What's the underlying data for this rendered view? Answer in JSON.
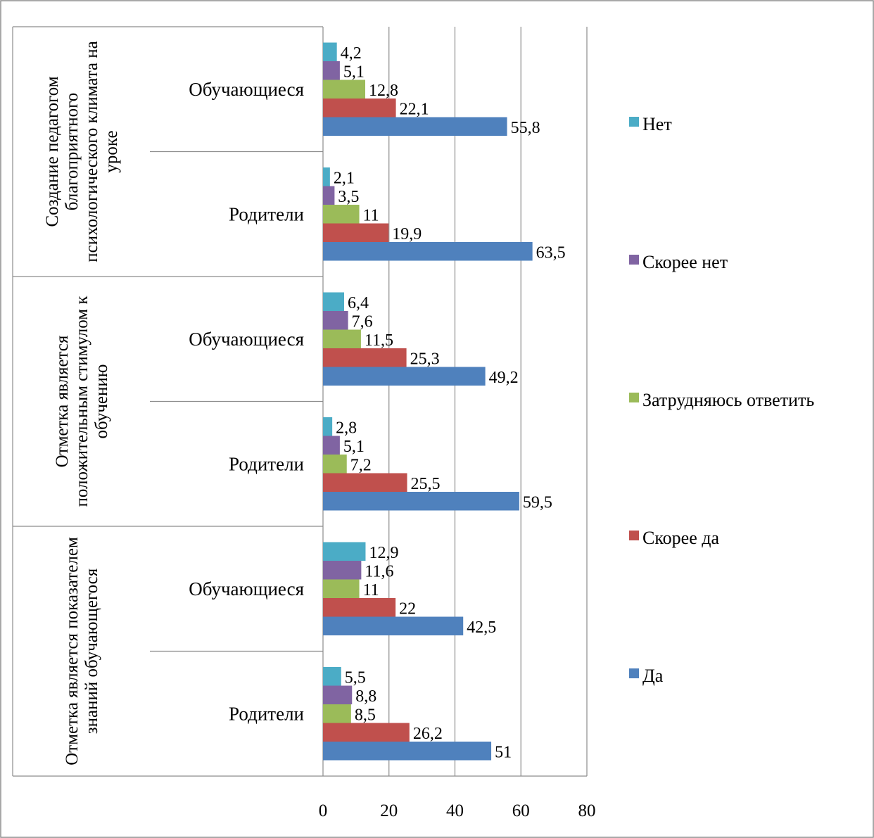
{
  "chart_data": {
    "type": "bar",
    "orientation": "horizontal",
    "title": "",
    "xlabel": "",
    "ylabel": "",
    "xlim": [
      0,
      80
    ],
    "x_ticks": [
      "0",
      "20",
      "40",
      "60",
      "80"
    ],
    "grid": "vertical",
    "legend_position": "right",
    "groups": [
      {
        "label": "Создание педагогом благоприятного психологического климата на уроке",
        "categories": [
          "Обучающиеся",
          "Родители"
        ]
      },
      {
        "label": "Отметка является положительным стимулом к обучению",
        "categories": [
          "Обучающиеся",
          "Родители"
        ]
      },
      {
        "label": "Отметка является показателем знаний обучающегося",
        "categories": [
          "Обучающиеся",
          "Родители"
        ]
      }
    ],
    "series": [
      {
        "name": "Да",
        "color": "#4F81BD",
        "values": [
          55.8,
          63.5,
          49.2,
          59.5,
          42.5,
          51
        ],
        "labels": [
          "55,8",
          "63,5",
          "49,2",
          "59,5",
          "42,5",
          "51"
        ]
      },
      {
        "name": "Скорее да",
        "color": "#C0504D",
        "values": [
          22.1,
          19.9,
          25.3,
          25.5,
          22,
          26.2
        ],
        "labels": [
          "22,1",
          "19,9",
          "25,3",
          "25,5",
          "22",
          "26,2"
        ]
      },
      {
        "name": "Затрудняюсь ответить",
        "color": "#9BBB59",
        "values": [
          12.8,
          11,
          11.5,
          7.2,
          11,
          8.5
        ],
        "labels": [
          "12,8",
          "11",
          "11,5",
          "7,2",
          "11",
          "8,5"
        ]
      },
      {
        "name": "Скорее нет",
        "color": "#8064A2",
        "values": [
          5.1,
          3.5,
          7.6,
          5.1,
          11.6,
          8.8
        ],
        "labels": [
          "5,1",
          "3,5",
          "7,6",
          "5,1",
          "11,6",
          "8,8"
        ]
      },
      {
        "name": "Нет",
        "color": "#4BACC6",
        "values": [
          4.2,
          2.1,
          6.4,
          2.8,
          12.9,
          5.5
        ],
        "labels": [
          "4,2",
          "2,1",
          "6,4",
          "2,8",
          "12,9",
          "5,5"
        ]
      }
    ],
    "legend_order": [
      "Нет",
      "Скорее нет",
      "Затрудняюсь ответить",
      "Скорее да",
      "Да"
    ]
  }
}
